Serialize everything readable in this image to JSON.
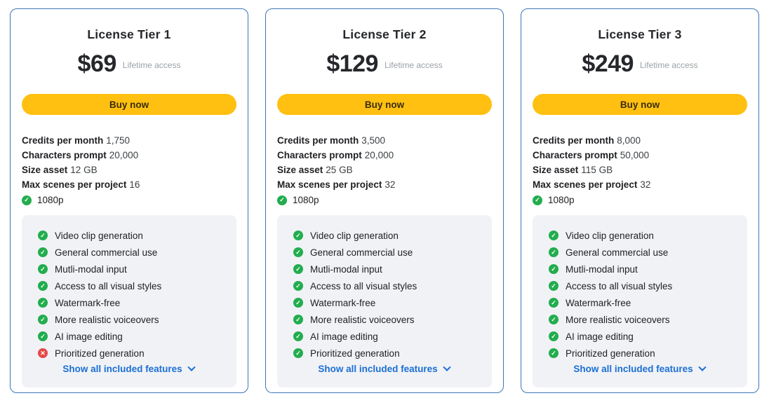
{
  "colors": {
    "card_border": "#3b76b5",
    "accent_yellow": "#ffc011",
    "buy_text": "#3a2d0a",
    "link_blue": "#1a6fd4",
    "check_green": "#22ad4e",
    "cross_red": "#e54848",
    "features_bg": "#f1f2f6",
    "note_gray": "#9aa0a6"
  },
  "cards": [
    {
      "title": "License Tier 1",
      "price": "$69",
      "price_note": "Lifetime access",
      "buy_label": "Buy now",
      "specs": [
        {
          "label": "Credits per month",
          "value": "1,750"
        },
        {
          "label": "Characters prompt",
          "value": "20,000"
        },
        {
          "label": "Size asset",
          "value": "12 GB"
        },
        {
          "label": "Max scenes per project",
          "value": "16"
        }
      ],
      "resolution": {
        "label": "1080p",
        "state": "included"
      },
      "features": [
        {
          "label": "Video clip generation",
          "state": "included"
        },
        {
          "label": "General commercial use",
          "state": "included"
        },
        {
          "label": "Mutli-modal input",
          "state": "included"
        },
        {
          "label": "Access to all visual styles",
          "state": "included"
        },
        {
          "label": "Watermark-free",
          "state": "included"
        },
        {
          "label": "More realistic voiceovers",
          "state": "included"
        },
        {
          "label": "AI image editing",
          "state": "included"
        },
        {
          "label": "Prioritized generation",
          "state": "excluded"
        }
      ],
      "show_all_label": "Show all included features"
    },
    {
      "title": "License Tier 2",
      "price": "$129",
      "price_note": "Lifetime access",
      "buy_label": "Buy now",
      "specs": [
        {
          "label": "Credits per month",
          "value": "3,500"
        },
        {
          "label": "Characters prompt",
          "value": "20,000"
        },
        {
          "label": "Size asset",
          "value": "25 GB"
        },
        {
          "label": "Max scenes per project",
          "value": "32"
        }
      ],
      "resolution": {
        "label": "1080p",
        "state": "included"
      },
      "features": [
        {
          "label": "Video clip generation",
          "state": "included"
        },
        {
          "label": "General commercial use",
          "state": "included"
        },
        {
          "label": "Mutli-modal input",
          "state": "included"
        },
        {
          "label": "Access to all visual styles",
          "state": "included"
        },
        {
          "label": "Watermark-free",
          "state": "included"
        },
        {
          "label": "More realistic voiceovers",
          "state": "included"
        },
        {
          "label": "AI image editing",
          "state": "included"
        },
        {
          "label": "Prioritized generation",
          "state": "included"
        }
      ],
      "show_all_label": "Show all included features"
    },
    {
      "title": "License Tier 3",
      "price": "$249",
      "price_note": "Lifetime access",
      "buy_label": "Buy now",
      "specs": [
        {
          "label": "Credits per month",
          "value": "8,000"
        },
        {
          "label": "Characters prompt",
          "value": "50,000"
        },
        {
          "label": "Size asset",
          "value": "115 GB"
        },
        {
          "label": "Max scenes per project",
          "value": "32"
        }
      ],
      "resolution": {
        "label": "1080p",
        "state": "included"
      },
      "features": [
        {
          "label": "Video clip generation",
          "state": "included"
        },
        {
          "label": "General commercial use",
          "state": "included"
        },
        {
          "label": "Mutli-modal input",
          "state": "included"
        },
        {
          "label": "Access to all visual styles",
          "state": "included"
        },
        {
          "label": "Watermark-free",
          "state": "included"
        },
        {
          "label": "More realistic voiceovers",
          "state": "included"
        },
        {
          "label": "AI image editing",
          "state": "included"
        },
        {
          "label": "Prioritized generation",
          "state": "included"
        }
      ],
      "show_all_label": "Show all included features"
    }
  ]
}
